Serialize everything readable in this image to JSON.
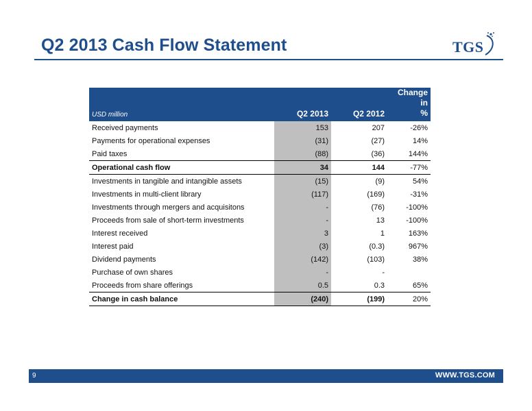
{
  "header": {
    "title": "Q2 2013 Cash Flow Statement",
    "logo_text": "TGS",
    "brand_color": "#1f4e8c"
  },
  "table": {
    "columns": {
      "label": "USD million",
      "q2_2013": "Q2 2013",
      "q2_2012": "Q2 2012",
      "change_line1": "Change in",
      "change_line2": "%"
    },
    "rows": [
      {
        "label": "Received payments",
        "q2_2013": "153",
        "q2_2012": "207",
        "change": "-26%"
      },
      {
        "label": "Payments for operational expenses",
        "q2_2013": "(31)",
        "q2_2012": "(27)",
        "change": "14%"
      },
      {
        "label": "Paid taxes",
        "q2_2013": "(88)",
        "q2_2012": "(36)",
        "change": "144%"
      },
      {
        "label": "Operational cash flow",
        "q2_2013": "34",
        "q2_2012": "144",
        "change": "-77%"
      },
      {
        "label": "Investments in tangible and intangible assets",
        "q2_2013": "(15)",
        "q2_2012": "(9)",
        "change": "54%"
      },
      {
        "label": "Investments in multi-client library",
        "q2_2013": "(117)",
        "q2_2012": "(169)",
        "change": "-31%"
      },
      {
        "label": "Investments through mergers and acquisitons",
        "q2_2013": "-",
        "q2_2012": "(76)",
        "change": "-100%"
      },
      {
        "label": "Proceeds from sale of  short-term investments",
        "q2_2013": "-",
        "q2_2012": "13",
        "change": "-100%"
      },
      {
        "label": "Interest received",
        "q2_2013": "3",
        "q2_2012": "1",
        "change": "163%"
      },
      {
        "label": "Interest paid",
        "q2_2013": "(3)",
        "q2_2012": "(0.3)",
        "change": "967%"
      },
      {
        "label": "Dividend payments",
        "q2_2013": "(142)",
        "q2_2012": "(103)",
        "change": "38%"
      },
      {
        "label": "Purchase of own shares",
        "q2_2013": "-",
        "q2_2012": "-",
        "change": ""
      },
      {
        "label": "Proceeds from share offerings",
        "q2_2013": "0.5",
        "q2_2012": "0.3",
        "change": "65%"
      },
      {
        "label": "Change in cash balance",
        "q2_2013": "(240)",
        "q2_2012": "(199)",
        "change": "20%"
      }
    ]
  },
  "footer": {
    "page_number": "9",
    "url": "WWW.TGS.COM"
  }
}
